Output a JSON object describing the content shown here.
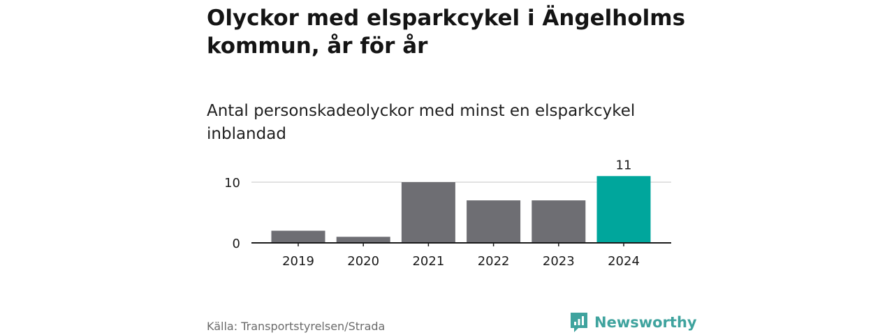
{
  "chart_data": {
    "type": "bar",
    "title": "Olyckor med elsparkcykel i Ängelholms kommun, år för år",
    "subtitle": "Antal personskadeolyckor med minst en elsparkcykel inblandad",
    "categories": [
      "2019",
      "2020",
      "2021",
      "2022",
      "2023",
      "2024"
    ],
    "values": [
      2,
      1,
      10,
      7,
      7,
      11
    ],
    "yticks": [
      0,
      10
    ],
    "ylim": [
      0,
      11
    ],
    "grid": true,
    "colors": {
      "default": "#6e6e73",
      "highlight": "#00a69c",
      "gridline": "#d9d9d9",
      "axis": "#1a1a1a"
    },
    "highlight_index": 5,
    "data_labels": [
      {
        "index": 5,
        "text": "11"
      }
    ]
  },
  "footer": {
    "source": "Källa: Transportstyrelsen/Strada",
    "brand": "Newsworthy"
  },
  "icons": {
    "brand_logo": "newsworthy-logo-icon"
  }
}
